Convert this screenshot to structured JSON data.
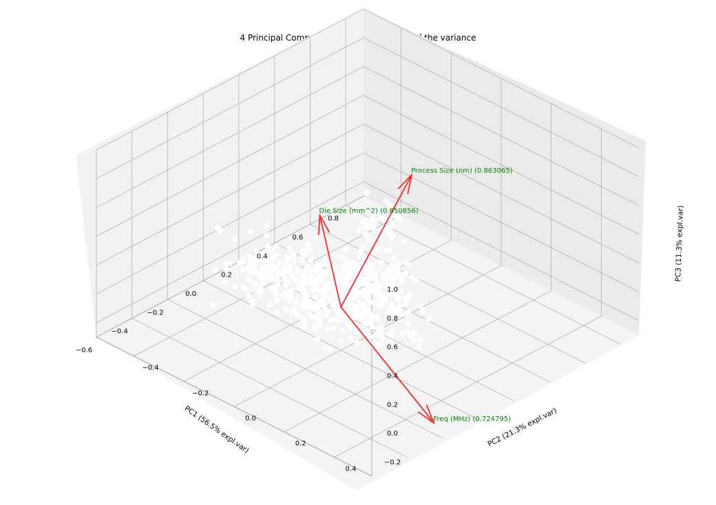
{
  "chart_data": {
    "type": "scatter",
    "projection": "3d",
    "title": "4 Principal Components explain [95.88%] of the variance",
    "xlabel": "PC1 (56.5% expl.var)",
    "ylabel": "PC2 (21.3% expl.var)",
    "zlabel": "PC3 (11.3% expl.var)",
    "xlim": [
      -0.6,
      0.9
    ],
    "ylim": [
      -0.55,
      0.55
    ],
    "zlim": [
      -0.3,
      1.0
    ],
    "xticks": [
      {
        "value": 0.8,
        "label": "0.8"
      },
      {
        "value": 0.6,
        "label": "0.6"
      },
      {
        "value": 0.4,
        "label": "0.4"
      },
      {
        "value": 0.2,
        "label": "0.2"
      },
      {
        "value": 0.0,
        "label": "0.0"
      },
      {
        "value": -0.2,
        "label": "−0.2"
      },
      {
        "value": -0.4,
        "label": "−0.4"
      },
      {
        "value": -0.6,
        "label": "−0.6"
      }
    ],
    "yticks": [
      {
        "value": -0.4,
        "label": "−0.4"
      },
      {
        "value": -0.2,
        "label": "−0.2"
      },
      {
        "value": 0.0,
        "label": "0.0"
      },
      {
        "value": 0.2,
        "label": "0.2"
      },
      {
        "value": 0.4,
        "label": "0.4"
      }
    ],
    "zticks": [
      {
        "value": 1.0,
        "label": "1.0"
      },
      {
        "value": 0.8,
        "label": "0.8"
      },
      {
        "value": 0.6,
        "label": "0.6"
      },
      {
        "value": 0.4,
        "label": "0.4"
      },
      {
        "value": 0.2,
        "label": "0.2"
      },
      {
        "value": 0.0,
        "label": "0.0"
      },
      {
        "value": -0.2,
        "label": "−0.2"
      }
    ],
    "grid": true,
    "point_color": "#ffffff",
    "arrow_color": "#ff2a2a",
    "label_color": "#008000",
    "loadings": [
      {
        "name": "Process Size (nm) (0.863065)",
        "x": 0.82,
        "y": -0.3,
        "z": 0.12
      },
      {
        "name": "Die Size (mm^2) (0.650856)",
        "x": 0.05,
        "y": -0.12,
        "z": 0.5
      },
      {
        "name": "Freq (MHz) (0.724795)",
        "x": -0.18,
        "y": 0.5,
        "z": -0.25
      }
    ],
    "clusters": [
      {
        "cx": 0.0,
        "cy": 0.0,
        "cz": 0.05,
        "sx": 0.14,
        "sy": 0.17,
        "sz": 0.13,
        "n": 330
      },
      {
        "cx": -0.08,
        "cy": -0.22,
        "cz": 0.1,
        "sx": 0.09,
        "sy": 0.12,
        "sz": 0.12,
        "n": 120
      },
      {
        "cx": 0.26,
        "cy": -0.02,
        "cz": 0.0,
        "sx": 0.1,
        "sy": 0.1,
        "sz": 0.08,
        "n": 110
      },
      {
        "cx": 0.45,
        "cy": -0.16,
        "cz": 0.15,
        "sx": 0.05,
        "sy": 0.05,
        "sz": 0.1,
        "n": 45
      }
    ]
  }
}
